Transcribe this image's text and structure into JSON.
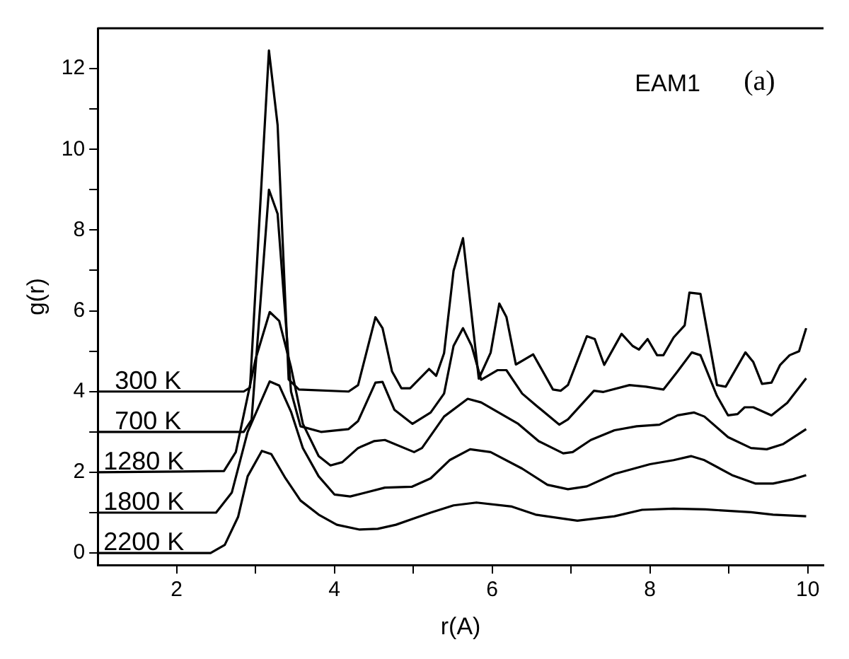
{
  "chart_data": {
    "type": "line",
    "xlabel": "r(A)",
    "ylabel": "g(r)",
    "xlim": [
      1,
      10.2
    ],
    "ylim": [
      -0.3,
      13
    ],
    "xticks": [
      2,
      {
        "value": 3,
        "label": null
      },
      4,
      {
        "value": 5,
        "label": null
      },
      6,
      {
        "value": 7,
        "label": null
      },
      8,
      {
        "value": 9,
        "label": null
      },
      10
    ],
    "yticks": [
      0,
      {
        "value": 1,
        "label": null
      },
      2,
      {
        "value": 3,
        "label": null
      },
      4,
      {
        "value": 5,
        "label": null
      },
      6,
      {
        "value": 7,
        "label": null
      },
      8,
      {
        "value": 9,
        "label": null
      },
      10,
      {
        "value": 11,
        "label": null
      },
      12
    ],
    "grid": false,
    "legend": false,
    "marker": "none",
    "line_style": "solid",
    "annotations": [
      "EAM1",
      "(a)"
    ],
    "series": [
      {
        "name": "300 K",
        "color": "#000000",
        "x": [
          1,
          2.85,
          2.93,
          3.17,
          3.28,
          3.42,
          3.55,
          4.18,
          4.3,
          4.52,
          4.61,
          4.73,
          4.85,
          4.96,
          5.2,
          5.29,
          5.39,
          5.51,
          5.63,
          5.83,
          5.98,
          6.09,
          6.18,
          6.3,
          6.52,
          6.77,
          6.87,
          6.96,
          7.2,
          7.3,
          7.42,
          7.64,
          7.78,
          7.86,
          7.97,
          8.09,
          8.17,
          8.3,
          8.44,
          8.5,
          8.64,
          8.85,
          8.96,
          9.21,
          9.31,
          9.42,
          9.54,
          9.65,
          9.77,
          9.89,
          9.98
        ],
        "values": [
          4,
          4,
          4.1,
          12.45,
          10.6,
          4.3,
          4.05,
          4,
          4.16,
          5.84,
          5.57,
          4.5,
          4.08,
          4.08,
          4.56,
          4.39,
          4.95,
          6.99,
          7.8,
          4.32,
          4.96,
          6.18,
          5.85,
          4.67,
          4.92,
          4.05,
          4.02,
          4.16,
          5.37,
          5.3,
          4.66,
          5.43,
          5.13,
          5.04,
          5.3,
          4.9,
          4.9,
          5.34,
          5.64,
          6.45,
          6.42,
          4.16,
          4.12,
          4.97,
          4.73,
          4.19,
          4.22,
          4.66,
          4.9,
          5,
          5.57
        ]
      },
      {
        "name": "700 K",
        "color": "#000000",
        "x": [
          1,
          2.85,
          2.95,
          3.17,
          3.28,
          3.45,
          3.57,
          3.83,
          4.18,
          4.3,
          4.52,
          4.61,
          4.76,
          4.99,
          5.22,
          5.39,
          5.51,
          5.63,
          5.74,
          5.86,
          6.07,
          6.18,
          6.38,
          6.56,
          6.85,
          6.96,
          7.29,
          7.41,
          7.74,
          7.95,
          8.17,
          8.35,
          8.53,
          8.64,
          8.85,
          8.99,
          9.11,
          9.2,
          9.31,
          9.54,
          9.74,
          9.98
        ],
        "values": [
          3,
          3,
          3.3,
          9,
          8.4,
          4,
          3.14,
          3,
          3.07,
          3.27,
          4.22,
          4.24,
          3.55,
          3.2,
          3.48,
          3.95,
          5.13,
          5.57,
          5.13,
          4.29,
          4.53,
          4.53,
          3.95,
          3.65,
          3.18,
          3.31,
          4.02,
          3.99,
          4.16,
          4.12,
          4.05,
          4.5,
          4.97,
          4.9,
          3.89,
          3.41,
          3.44,
          3.61,
          3.61,
          3.41,
          3.72,
          4.33
        ]
      },
      {
        "name": "1280 K",
        "color": "#000000",
        "x": [
          1,
          2.6,
          2.75,
          3,
          3.18,
          3.3,
          3.45,
          3.6,
          3.8,
          3.95,
          4.1,
          4.3,
          4.5,
          4.64,
          5.01,
          5.11,
          5.39,
          5.69,
          5.86,
          6.33,
          6.59,
          6.9,
          7.02,
          7.25,
          7.55,
          7.83,
          8.12,
          8.35,
          8.56,
          8.69,
          8.99,
          9.28,
          9.48,
          9.69,
          9.98
        ],
        "values": [
          2,
          2.03,
          2.5,
          4.8,
          5.97,
          5.75,
          4.6,
          3.2,
          2.4,
          2.17,
          2.25,
          2.6,
          2.77,
          2.8,
          2.5,
          2.6,
          3.38,
          3.82,
          3.73,
          3.2,
          2.77,
          2.47,
          2.5,
          2.8,
          3.04,
          3.14,
          3.18,
          3.41,
          3.48,
          3.38,
          2.87,
          2.6,
          2.57,
          2.7,
          3.07
        ]
      },
      {
        "name": "1800 K",
        "color": "#000000",
        "x": [
          1,
          2.5,
          2.7,
          2.9,
          3.18,
          3.3,
          3.45,
          3.6,
          3.8,
          4,
          4.2,
          4.4,
          4.64,
          4.98,
          5.22,
          5.46,
          5.72,
          5.98,
          6.38,
          6.7,
          6.96,
          7.2,
          7.55,
          8,
          8.3,
          8.52,
          8.69,
          9.04,
          9.34,
          9.56,
          9.8,
          9.98
        ],
        "values": [
          1,
          1,
          1.5,
          3,
          4.25,
          4.15,
          3.5,
          2.6,
          1.9,
          1.45,
          1.4,
          1.5,
          1.62,
          1.64,
          1.85,
          2.3,
          2.57,
          2.5,
          2.09,
          1.69,
          1.58,
          1.65,
          1.96,
          2.2,
          2.3,
          2.4,
          2.3,
          1.93,
          1.72,
          1.72,
          1.82,
          1.93
        ]
      },
      {
        "name": "2200 K",
        "color": "#000000",
        "x": [
          1,
          2.43,
          2.61,
          2.78,
          2.9,
          3.08,
          3.2,
          3.38,
          3.57,
          3.8,
          4.03,
          4.32,
          4.55,
          4.78,
          5,
          5.22,
          5.51,
          5.8,
          6.25,
          6.55,
          7.08,
          7.55,
          7.9,
          8.3,
          8.7,
          9.28,
          9.56,
          9.98
        ],
        "values": [
          0,
          0,
          0.2,
          0.9,
          1.9,
          2.53,
          2.45,
          1.85,
          1.3,
          0.95,
          0.7,
          0.58,
          0.6,
          0.7,
          0.85,
          1,
          1.18,
          1.25,
          1.15,
          0.95,
          0.8,
          0.91,
          1.07,
          1.1,
          1.08,
          1.01,
          0.95,
          0.91
        ]
      }
    ]
  }
}
